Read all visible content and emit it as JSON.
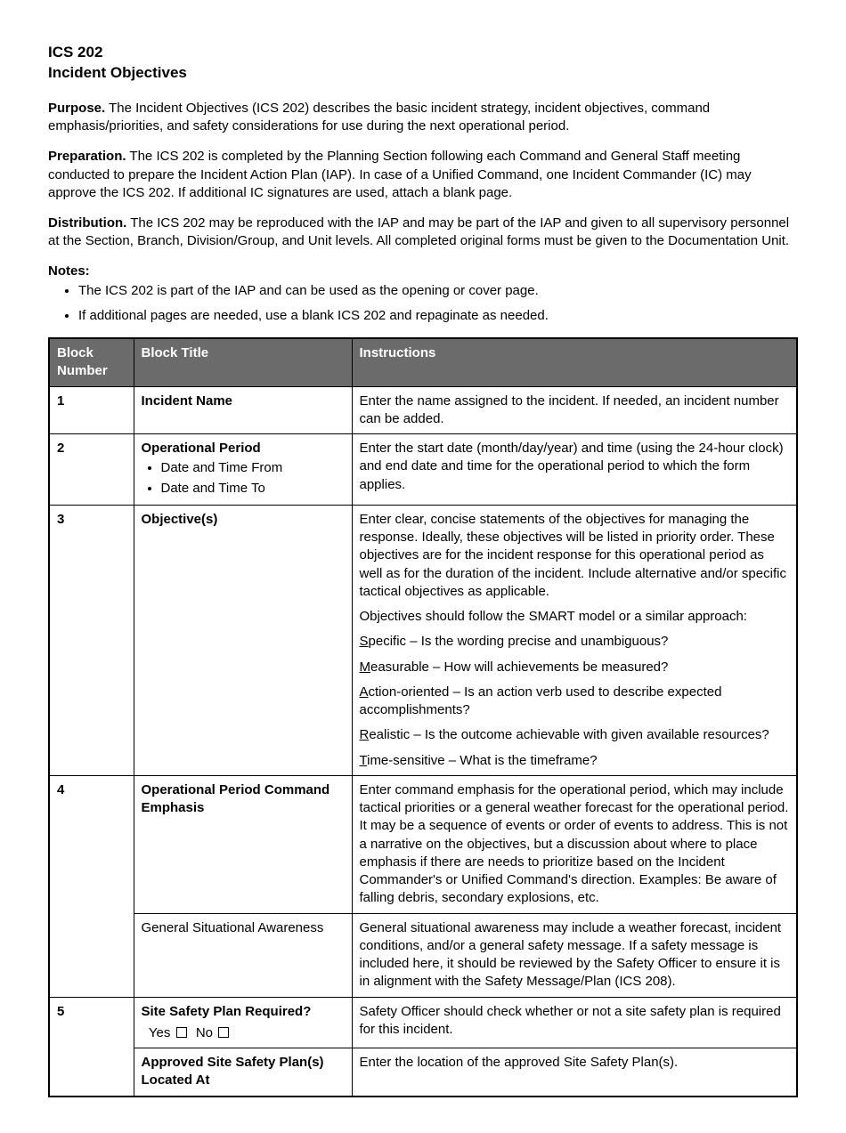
{
  "header": {
    "form_code": "ICS 202",
    "form_title": "Incident Objectives"
  },
  "sections": {
    "purpose": {
      "lead": "Purpose.",
      "text": "  The Incident Objectives (ICS 202) describes the basic incident strategy, incident objectives, command emphasis/priorities, and safety considerations for use during the next operational period."
    },
    "preparation": {
      "lead": "Preparation.",
      "text": "  The ICS 202 is completed by the Planning Section following each Command and General Staff meeting conducted to prepare the Incident Action Plan (IAP).  In case of a Unified Command, one Incident Commander (IC) may approve the ICS 202.  If additional IC signatures are used, attach a blank page."
    },
    "distribution": {
      "lead": "Distribution.",
      "text": "  The ICS 202 may be reproduced with the IAP and may be part of the IAP and given to all supervisory personnel at the Section, Branch, Division/Group, and Unit levels.  All completed original forms must be given to the Documentation Unit."
    },
    "notes_heading": "Notes:",
    "notes": [
      "The ICS 202 is part of the IAP and can be used as the opening or cover page.",
      "If additional pages are needed, use a blank ICS 202 and repaginate as needed."
    ]
  },
  "table": {
    "headers": {
      "block": "Block Number",
      "title": "Block Title",
      "instructions": "Instructions"
    },
    "rows": {
      "r1": {
        "num": "1",
        "title": "Incident Name",
        "instr": "Enter the name assigned to the incident.  If needed, an incident number can be added."
      },
      "r2": {
        "num": "2",
        "title": "Operational Period",
        "bullets": [
          "Date and Time From",
          "Date and Time To"
        ],
        "instr": "Enter the start date (month/day/year) and time (using the 24-hour clock) and end date and time for the operational period to which the form applies."
      },
      "r3": {
        "num": "3",
        "title": "Objective(s)",
        "instr_p1": "Enter clear, concise statements of the objectives for managing the response.  Ideally, these objectives will be listed in priority order.  These objectives are for the incident response for this operational period as well as for the duration of the incident.  Include alternative and/or specific tactical objectives as applicable.",
        "instr_p2": "Objectives should follow the SMART model or a similar approach:",
        "smart": {
          "s_u": "S",
          "s_rest": "pecific – Is the wording precise and unambiguous?",
          "m_u": "M",
          "m_rest": "easurable – How will achievements be measured?",
          "a_u": "A",
          "a_rest": "ction-oriented – Is an action verb used to describe expected accomplishments?",
          "r_u": "R",
          "r_rest": "ealistic – Is the outcome achievable with given available resources?",
          "t_u": "T",
          "t_rest": "ime-sensitive – What is the timeframe?"
        }
      },
      "r4a": {
        "num": "4",
        "title": "Operational Period Command Emphasis",
        "instr": "Enter command emphasis for the operational period, which may include tactical priorities or a general weather forecast for the operational period.  It may be a sequence of events or order of events to address.  This is not a narrative on the objectives, but a discussion about where to place emphasis if there are needs to prioritize based on the Incident Commander's or Unified Command's direction.  Examples:  Be aware of falling debris, secondary explosions, etc."
      },
      "r4b": {
        "title": "General Situational Awareness",
        "instr": "General situational awareness may include a weather forecast, incident conditions, and/or a general safety message.  If a safety message is included here, it should be reviewed by the Safety Officer to ensure it is in alignment with the Safety Message/Plan (ICS 208)."
      },
      "r5a": {
        "num": "5",
        "title": "Site Safety Plan Required?",
        "yes": "Yes",
        "no": "No",
        "instr": "Safety Officer should check whether or not a site safety plan is required for this incident."
      },
      "r5b": {
        "title": "Approved Site Safety Plan(s) Located At",
        "instr": "Enter the location of the approved Site Safety Plan(s)."
      }
    }
  },
  "colors": {
    "header_bg": "#6b6b6b",
    "header_fg": "#ffffff",
    "border": "#000000",
    "text": "#000000",
    "background": "#ffffff"
  }
}
